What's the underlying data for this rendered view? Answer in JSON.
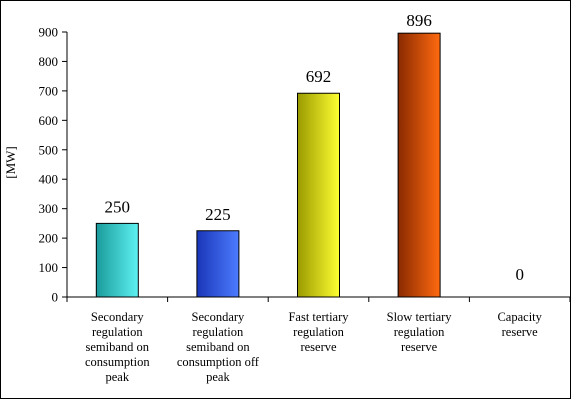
{
  "chart_data": {
    "type": "bar",
    "title": "",
    "xlabel": "",
    "ylabel": "[MW]",
    "ylim": [
      0,
      900
    ],
    "yticks": [
      0,
      100,
      200,
      300,
      400,
      500,
      600,
      700,
      800,
      900
    ],
    "grid": false,
    "legend": "none",
    "categories": [
      [
        "Secondary",
        "regulation",
        "semiband on",
        "consumption",
        "peak"
      ],
      [
        "Secondary",
        "regulation",
        "semiband on",
        "consumption off",
        "peak"
      ],
      [
        "Fast tertiary",
        "regulation",
        "reserve"
      ],
      [
        "Slow tertiary",
        "regulation",
        "reserve"
      ],
      [
        "Capacity",
        "reserve"
      ]
    ],
    "values": [
      250,
      225,
      692,
      896,
      0
    ],
    "data_labels": [
      "250",
      "225",
      "692",
      "896",
      "0"
    ],
    "colors": [
      [
        "#1a9a9a",
        "#5ef2f2"
      ],
      [
        "#1a36b8",
        "#4d7cff"
      ],
      [
        "#9a9a00",
        "#ffff33"
      ],
      [
        "#8a2a00",
        "#ff6a10"
      ],
      [
        "#888888",
        "#cccccc"
      ]
    ]
  }
}
